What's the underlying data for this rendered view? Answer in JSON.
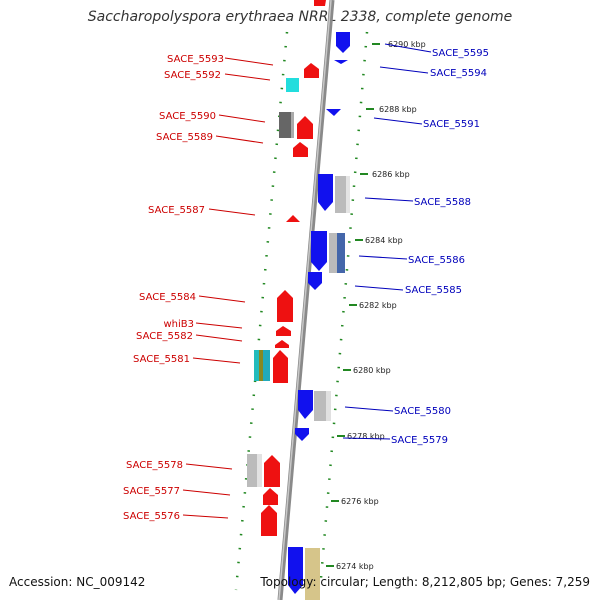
{
  "title": "Saccharopolyspora erythraea NRRL 2338, complete genome",
  "accession": "Accession: NC_009142",
  "topology": "Topology: circular; Length: 8,212,805 bp; Genes: 7,259",
  "colors": {
    "forward": "#ee1111",
    "reverse": "#1111ee",
    "backbone": "#888888",
    "gc_dots": "#228822",
    "left_label": "#cc0000",
    "right_label": "#0000bb"
  },
  "ticks": [
    "6290 kbp",
    "6288 kbp",
    "6286 kbp",
    "6284 kbp",
    "6282 kbp",
    "6280 kbp",
    "6278 kbp",
    "6276 kbp",
    "6274 kbp"
  ],
  "left_genes": [
    "SACE_5593",
    "SACE_5592",
    "SACE_5590",
    "SACE_5589",
    "SACE_5587",
    "SACE_5584",
    "whiB3",
    "SACE_5582",
    "SACE_5581",
    "SACE_5578",
    "SACE_5577",
    "SACE_5576"
  ],
  "right_genes": [
    "SACE_5595",
    "SACE_5594",
    "SACE_5591",
    "SACE_5588",
    "SACE_5586",
    "SACE_5585",
    "SACE_5580",
    "SACE_5579"
  ]
}
